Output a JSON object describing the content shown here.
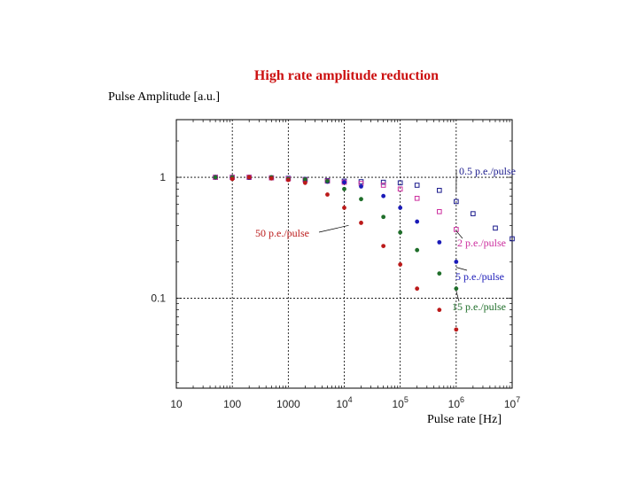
{
  "chart_data": {
    "type": "scatter",
    "title": "High rate amplitude reduction",
    "xlabel": "Pulse rate [Hz]",
    "ylabel": "Pulse Amplitude [a.u.]",
    "xscale": "log",
    "yscale": "log",
    "xlim": [
      10,
      10000000
    ],
    "ylim": [
      0.018,
      3
    ],
    "grid": true,
    "x_ticks": [
      {
        "value": 10,
        "base": "10",
        "exp": ""
      },
      {
        "value": 100,
        "base": "100",
        "exp": ""
      },
      {
        "value": 1000,
        "base": "1000",
        "exp": ""
      },
      {
        "value": 10000,
        "base": "10",
        "exp": "4"
      },
      {
        "value": 100000,
        "base": "10",
        "exp": "5"
      },
      {
        "value": 1000000,
        "base": "10",
        "exp": "6"
      },
      {
        "value": 10000000,
        "base": "10",
        "exp": "7"
      }
    ],
    "y_ticks": [
      {
        "value": 1,
        "label": "1"
      },
      {
        "value": 0.1,
        "label": "0.1"
      }
    ],
    "colors": {
      "title": "#cc1111",
      "navy": "#1a1a8c",
      "magenta": "#cc2e9e",
      "blue": "#1a1ab8",
      "green": "#1f6e2a",
      "red": "#bb1a1a"
    },
    "series": [
      {
        "name": "0.5 p.e./pulse",
        "marker": "open-square",
        "color": "#1a1a8c",
        "x": [
          50,
          100,
          200,
          500,
          1000,
          2000,
          5000,
          10000,
          20000,
          50000,
          100000,
          200000,
          500000,
          1000000,
          2000000,
          5000000,
          10000000
        ],
        "y": [
          1.0,
          1.0,
          1.0,
          0.99,
          0.98,
          0.96,
          0.94,
          0.93,
          0.92,
          0.91,
          0.9,
          0.86,
          0.78,
          0.63,
          0.5,
          0.38,
          0.31
        ]
      },
      {
        "name": "2 p.e./pulse",
        "marker": "open-square",
        "color": "#cc2e9e",
        "x": [
          50,
          100,
          200,
          500,
          1000,
          2000,
          5000,
          10000,
          20000,
          50000,
          100000,
          200000,
          500000,
          1000000
        ],
        "y": [
          1.0,
          1.0,
          1.0,
          0.99,
          0.97,
          0.95,
          0.93,
          0.91,
          0.89,
          0.86,
          0.8,
          0.67,
          0.52,
          0.37
        ]
      },
      {
        "name": "5 p.e./pulse",
        "marker": "filled-circle",
        "color": "#1a1ab8",
        "x": [
          50,
          100,
          200,
          500,
          1000,
          2000,
          5000,
          10000,
          20000,
          50000,
          100000,
          200000,
          500000,
          1000000
        ],
        "y": [
          1.0,
          0.99,
          0.99,
          0.98,
          0.96,
          0.94,
          0.92,
          0.91,
          0.84,
          0.7,
          0.56,
          0.43,
          0.29,
          0.2
        ]
      },
      {
        "name": "15 p.e./pulse",
        "marker": "filled-circle",
        "color": "#1f6e2a",
        "x": [
          50,
          100,
          200,
          500,
          1000,
          2000,
          5000,
          10000,
          20000,
          50000,
          100000,
          200000,
          500000,
          1000000
        ],
        "y": [
          1.0,
          1.0,
          1.0,
          1.0,
          0.97,
          0.96,
          0.93,
          0.8,
          0.66,
          0.47,
          0.35,
          0.25,
          0.16,
          0.12
        ]
      },
      {
        "name": "50 p.e./pulse",
        "marker": "filled-circle",
        "color": "#bb1a1a",
        "x": [
          100,
          200,
          500,
          1000,
          2000,
          5000,
          10000,
          20000,
          50000,
          100000,
          200000,
          500000,
          1000000
        ],
        "y": [
          0.97,
          1.0,
          0.98,
          0.95,
          0.9,
          0.72,
          0.56,
          0.42,
          0.27,
          0.19,
          0.12,
          0.08,
          0.055
        ]
      }
    ],
    "annotations": [
      {
        "text": "0.5 p.e./pulse",
        "color": "#1a1a8c",
        "target": [
          1000000,
          0.75
        ]
      },
      {
        "text": "50 p.e./pulse",
        "color": "#bb1a1a",
        "target": [
          12000,
          0.4
        ]
      },
      {
        "text": "2 p.e./pulse",
        "color": "#cc2e9e",
        "target": [
          1000000,
          0.36
        ]
      },
      {
        "text": "5 p.e./pulse",
        "color": "#1a1ab8",
        "target": [
          1000000,
          0.18
        ]
      },
      {
        "text": "15 p.e./pulse",
        "color": "#1f6e2a",
        "target": [
          1000000,
          0.115
        ]
      }
    ]
  }
}
